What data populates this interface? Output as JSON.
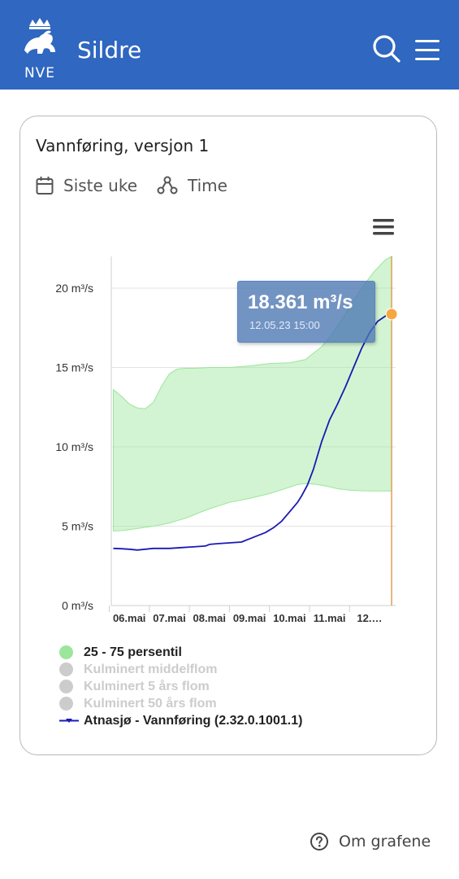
{
  "header": {
    "logo_text": "NVE",
    "title": "Sildre",
    "search_icon": "search-icon",
    "menu_icon": "hamburger-menu-icon",
    "background": "#2f67c1"
  },
  "card": {
    "title": "Vannføring, versjon 1",
    "period_label": "Siste uke",
    "resolution_label": "Time",
    "chart_menu_icon": "hamburger-menu-icon"
  },
  "tooltip": {
    "value": "18.361 m³/s",
    "time": "12.05.23 15:00"
  },
  "chart_data": {
    "type": "line",
    "title": "",
    "xlabel": "",
    "ylabel": "",
    "ylim": [
      0,
      22
    ],
    "yticks": [
      {
        "value": 0,
        "label": "0 m³/s"
      },
      {
        "value": 5,
        "label": "5 m³/s"
      },
      {
        "value": 10,
        "label": "10 m³/s"
      },
      {
        "value": 15,
        "label": "15 m³/s"
      },
      {
        "value": 20,
        "label": "20 m³/s"
      }
    ],
    "xlim": [
      5.55,
      12.65
    ],
    "xticks": [
      {
        "value": 6,
        "label": "06.mai"
      },
      {
        "value": 7,
        "label": "07.mai"
      },
      {
        "value": 8,
        "label": "08.mai"
      },
      {
        "value": 9,
        "label": "09.mai"
      },
      {
        "value": 10,
        "label": "10.mai"
      },
      {
        "value": 11,
        "label": "11.mai"
      },
      {
        "value": 12,
        "label": "12.…"
      }
    ],
    "grid": true,
    "band": {
      "name": "25 - 75 persentil",
      "color": "#9be69b",
      "x": [
        5.6,
        5.8,
        6.0,
        6.2,
        6.4,
        6.6,
        6.8,
        7.0,
        7.2,
        7.4,
        7.6,
        7.8,
        8.0,
        8.5,
        9.0,
        9.5,
        10.0,
        10.2,
        10.4,
        10.6,
        10.8,
        11.0,
        11.2,
        11.5,
        11.8,
        12.1,
        12.4,
        12.55
      ],
      "upper": [
        13.6,
        13.2,
        12.7,
        12.45,
        12.4,
        12.8,
        13.8,
        14.6,
        14.9,
        14.95,
        14.95,
        14.97,
        15.0,
        15.0,
        15.1,
        15.25,
        15.3,
        15.4,
        15.5,
        15.9,
        16.3,
        16.9,
        17.6,
        18.8,
        20.0,
        21.0,
        21.8,
        22.0
      ],
      "lower": [
        4.7,
        4.72,
        4.78,
        4.85,
        4.93,
        5.0,
        5.1,
        5.2,
        5.35,
        5.5,
        5.7,
        5.9,
        6.1,
        6.5,
        6.75,
        7.05,
        7.45,
        7.62,
        7.68,
        7.65,
        7.58,
        7.48,
        7.36,
        7.27,
        7.23,
        7.22,
        7.22,
        7.22
      ]
    },
    "series": [
      {
        "name": "Atnasjø - Vannføring (2.32.0.1001.1)",
        "color": "#1a1ab4",
        "x": [
          5.6,
          5.8,
          6.0,
          6.2,
          6.4,
          6.6,
          6.8,
          7.0,
          7.3,
          7.6,
          7.9,
          8.0,
          8.2,
          8.5,
          8.8,
          9.0,
          9.2,
          9.4,
          9.6,
          9.8,
          10.0,
          10.2,
          10.3,
          10.45,
          10.6,
          10.8,
          11.0,
          11.2,
          11.4,
          11.6,
          11.8,
          12.0,
          12.2,
          12.4,
          12.55
        ],
        "values": [
          3.6,
          3.58,
          3.55,
          3.5,
          3.55,
          3.6,
          3.6,
          3.6,
          3.65,
          3.7,
          3.75,
          3.85,
          3.9,
          3.95,
          4.0,
          4.2,
          4.4,
          4.6,
          4.9,
          5.3,
          5.9,
          6.5,
          6.9,
          7.6,
          8.6,
          10.3,
          11.7,
          12.7,
          13.8,
          15.0,
          16.2,
          17.2,
          17.9,
          18.25,
          18.36
        ]
      }
    ],
    "highlight_point": {
      "x": 12.55,
      "y": 18.361,
      "color": "#f5a742"
    },
    "crosshair_color": "#e0a050",
    "legend": [
      {
        "label": "25 - 75 persentil",
        "color": "#9be69b",
        "active": true,
        "marker": "dot"
      },
      {
        "label": "Kulminert middelflom",
        "color": "#cccccc",
        "active": false,
        "marker": "dot"
      },
      {
        "label": "Kulminert 5 års flom",
        "color": "#cccccc",
        "active": false,
        "marker": "dot"
      },
      {
        "label": "Kulminert 50 års flom",
        "color": "#cccccc",
        "active": false,
        "marker": "dot"
      },
      {
        "label": "Atnasjø - Vannføring (2.32.0.1001.1)",
        "color": "#1a1ab4",
        "active": true,
        "marker": "line"
      }
    ],
    "legend_position": "bottom"
  },
  "footer": {
    "link_label": "Om grafene",
    "help_icon": "help-circle-icon"
  }
}
